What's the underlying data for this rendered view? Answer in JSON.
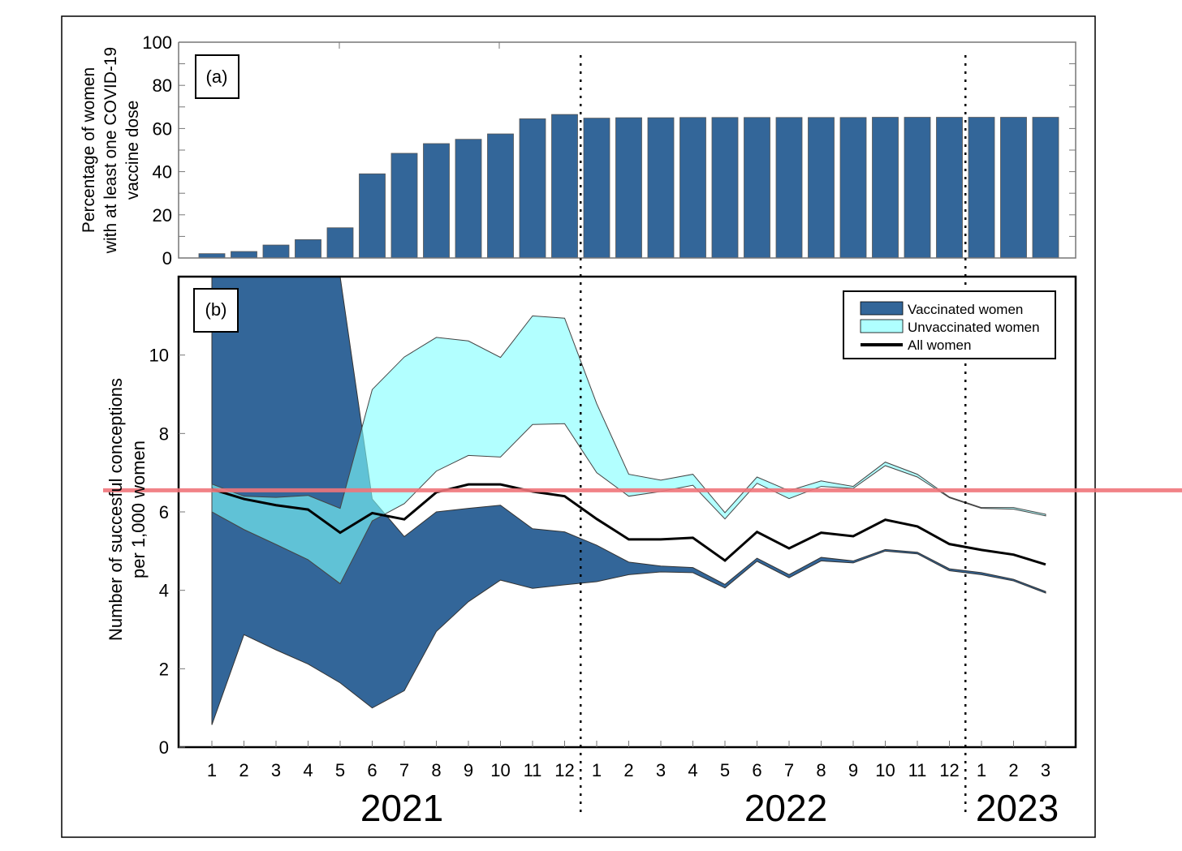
{
  "chart_data": [
    {
      "id": "a",
      "type": "bar",
      "panel_label": "(a)",
      "ylabel": [
        "Percentage of women",
        "with at least one COVID-19",
        "vaccine dose"
      ],
      "ylim": [
        0,
        100
      ],
      "yticks": [
        0,
        20,
        40,
        60,
        80,
        100
      ],
      "color": "#336699",
      "values": [
        2,
        3,
        6,
        8.5,
        14,
        39,
        48.5,
        53,
        55,
        57.5,
        64.5,
        66.5,
        64.8,
        65,
        65,
        65.1,
        65.1,
        65.1,
        65.1,
        65.1,
        65.1,
        65.2,
        65.2,
        65.2,
        65.2,
        65.2,
        65.2
      ]
    },
    {
      "id": "b",
      "type": "area",
      "panel_label": "(b)",
      "ylabel": [
        "Number of succesful conceptions",
        "per 1,000 women"
      ],
      "ylim": [
        0,
        12
      ],
      "yticks": [
        0,
        2,
        4,
        6,
        8,
        10
      ],
      "x_tick_labels": [
        "1",
        "2",
        "3",
        "4",
        "5",
        "6",
        "7",
        "8",
        "9",
        "10",
        "11",
        "12",
        "1",
        "2",
        "3",
        "4",
        "5",
        "6",
        "7",
        "8",
        "9",
        "10",
        "11",
        "12",
        "1",
        "2",
        "3"
      ],
      "year_labels": [
        "2021",
        "2022",
        "2023"
      ],
      "legend": {
        "position": "top-right",
        "entries": [
          "Vaccinated women",
          "Unvaccinated women",
          "All women"
        ]
      },
      "series": [
        {
          "name": "Vaccinated women",
          "type": "band",
          "color": "#336699",
          "upper": [
            15,
            15,
            15,
            15,
            15,
            6.33,
            5.37,
            6.0,
            6.09,
            6.17,
            5.57,
            5.49,
            5.15,
            4.72,
            4.62,
            4.58,
            4.15,
            4.82,
            4.4,
            4.84,
            4.75,
            5.04,
            4.97,
            4.55,
            4.45,
            4.28,
            3.97
          ],
          "lower": [
            0.57,
            2.87,
            2.48,
            2.12,
            1.64,
            1.0,
            1.44,
            2.95,
            3.71,
            4.26,
            4.05,
            4.14,
            4.22,
            4.4,
            4.47,
            4.45,
            4.06,
            4.74,
            4.32,
            4.75,
            4.7,
            5.0,
            4.93,
            4.5,
            4.4,
            4.24,
            3.93
          ]
        },
        {
          "name": "Unvaccinated women",
          "type": "band",
          "color": "#7FFFFF",
          "upper": [
            6.71,
            6.4,
            6.37,
            6.42,
            6.09,
            9.12,
            9.95,
            10.45,
            10.36,
            9.94,
            11.0,
            10.94,
            8.76,
            6.96,
            6.81,
            6.96,
            5.98,
            6.89,
            6.54,
            6.79,
            6.65,
            7.27,
            6.96,
            6.38,
            6.11,
            6.11,
            5.94
          ],
          "lower": [
            6.0,
            5.55,
            5.17,
            4.78,
            4.17,
            5.77,
            6.21,
            7.04,
            7.44,
            7.4,
            8.23,
            8.25,
            7.0,
            6.4,
            6.52,
            6.68,
            5.82,
            6.73,
            6.34,
            6.65,
            6.6,
            7.18,
            6.89,
            6.36,
            6.09,
            6.07,
            5.9
          ]
        },
        {
          "name": "All women",
          "type": "line",
          "color": "#000000",
          "values": [
            6.58,
            6.33,
            6.17,
            6.06,
            5.47,
            5.97,
            5.81,
            6.5,
            6.7,
            6.7,
            6.52,
            6.4,
            5.82,
            5.3,
            5.3,
            5.34,
            4.76,
            5.49,
            5.07,
            5.47,
            5.38,
            5.8,
            5.63,
            5.18,
            5.03,
            4.91,
            4.66
          ]
        }
      ],
      "reference_line": {
        "value": 6.55,
        "color": "#F0747A"
      },
      "year_dividers_after_month_index": [
        12,
        24
      ]
    }
  ]
}
